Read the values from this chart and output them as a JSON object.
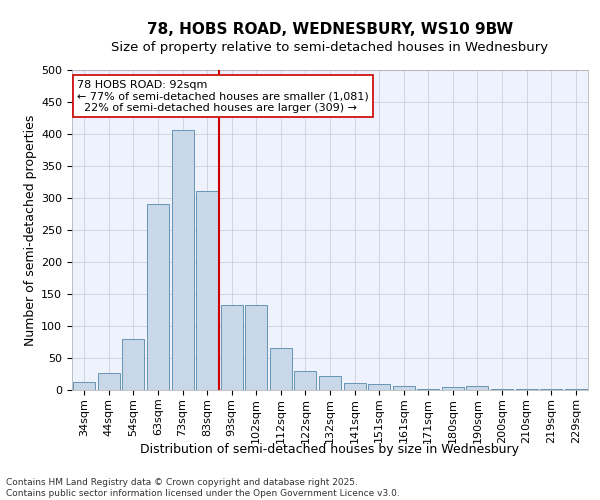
{
  "title": "78, HOBS ROAD, WEDNESBURY, WS10 9BW",
  "subtitle": "Size of property relative to semi-detached houses in Wednesbury",
  "xlabel": "Distribution of semi-detached houses by size in Wednesbury",
  "ylabel": "Number of semi-detached properties",
  "categories": [
    "34sqm",
    "44sqm",
    "54sqm",
    "63sqm",
    "73sqm",
    "83sqm",
    "93sqm",
    "102sqm",
    "112sqm",
    "122sqm",
    "132sqm",
    "141sqm",
    "151sqm",
    "161sqm",
    "171sqm",
    "180sqm",
    "190sqm",
    "200sqm",
    "210sqm",
    "219sqm",
    "229sqm"
  ],
  "values": [
    13,
    26,
    79,
    290,
    407,
    311,
    133,
    133,
    65,
    29,
    22,
    11,
    9,
    6,
    2,
    5,
    6,
    1,
    1,
    1,
    1
  ],
  "bar_color": "#c8d8e8",
  "bar_edge_color": "#5588aa",
  "vline_index": 6,
  "vline_color": "#cc0000",
  "annotation_line1": "78 HOBS ROAD: 92sqm",
  "annotation_line2": "← 77% of semi-detached houses are smaller (1,081)",
  "annotation_line3": "  22% of semi-detached houses are larger (309) →",
  "ylim": [
    0,
    500
  ],
  "yticks": [
    0,
    50,
    100,
    150,
    200,
    250,
    300,
    350,
    400,
    450,
    500
  ],
  "footer": "Contains HM Land Registry data © Crown copyright and database right 2025.\nContains public sector information licensed under the Open Government Licence v3.0.",
  "background_color": "#eef2fc",
  "grid_color": "#c8c8d0",
  "title_fontsize": 11,
  "subtitle_fontsize": 9.5,
  "axis_label_fontsize": 9,
  "tick_fontsize": 8,
  "annotation_fontsize": 8,
  "footer_fontsize": 6.5
}
